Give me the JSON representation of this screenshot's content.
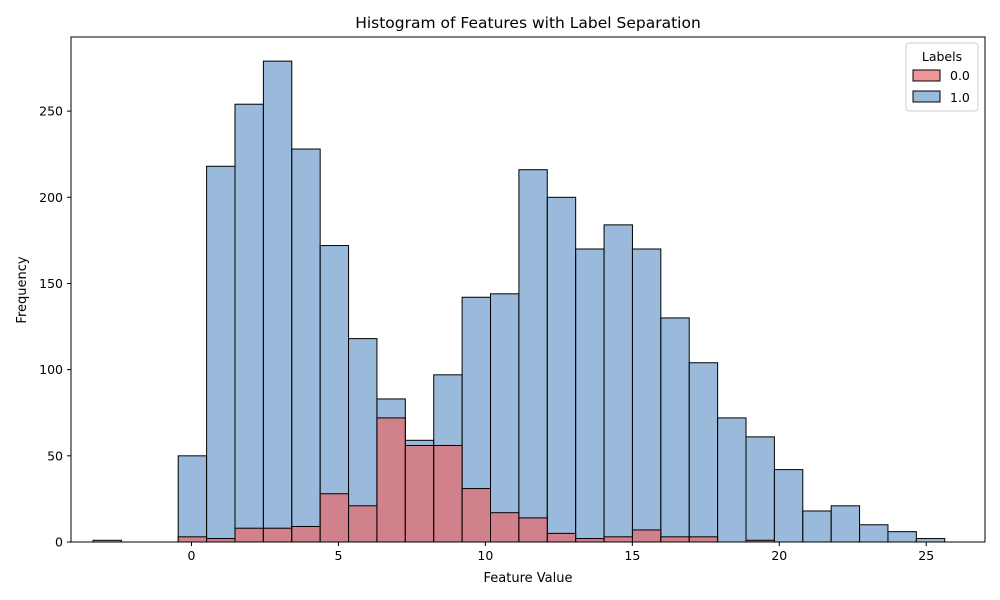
{
  "chart_data": {
    "type": "bar",
    "title": "Histogram of Features with Label Separation",
    "xlabel": "Feature Value",
    "ylabel": "Frequency",
    "xlim": [
      -4.1,
      27.0
    ],
    "ylim": [
      0,
      293
    ],
    "xticks": [
      0,
      5,
      10,
      15,
      20,
      25
    ],
    "yticks": [
      0,
      50,
      100,
      150,
      200,
      250
    ],
    "grid": false,
    "legend": {
      "title": "Labels",
      "position": "top-right"
    },
    "bin_start": -3.35,
    "bin_width": 0.966,
    "series": [
      {
        "name": "0.0",
        "color": "#e8696b",
        "counts": [
          0,
          0,
          0,
          3,
          2,
          8,
          8,
          9,
          28,
          21,
          72,
          56,
          56,
          31,
          17,
          14,
          5,
          2,
          3,
          7,
          3,
          3,
          0,
          1,
          0,
          0,
          0,
          0,
          0,
          0
        ]
      },
      {
        "name": "1.0",
        "color": "#6e9ccb",
        "counts": [
          1,
          0,
          0,
          50,
          218,
          254,
          279,
          228,
          172,
          118,
          83,
          59,
          97,
          142,
          144,
          216,
          200,
          170,
          184,
          170,
          130,
          104,
          72,
          61,
          42,
          18,
          21,
          10,
          6,
          2
        ]
      }
    ]
  }
}
